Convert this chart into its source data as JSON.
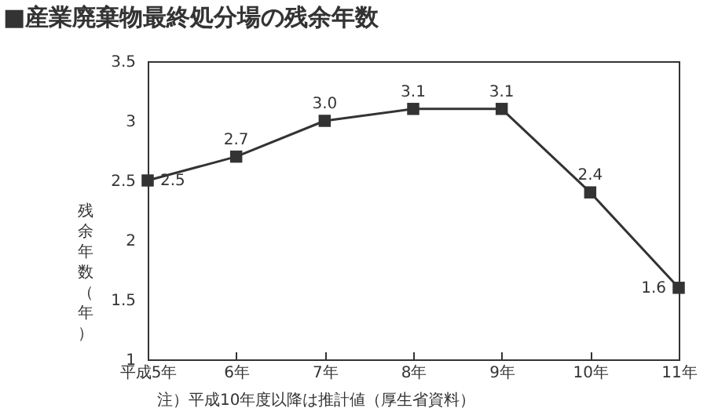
{
  "chart_data": {
    "type": "line",
    "title": "■産業廃棄物最終処分場の残余年数",
    "ylabel": "残余年数（年）",
    "categories": [
      "平成5年",
      "6年",
      "7年",
      "8年",
      "9年",
      "10年",
      "11年"
    ],
    "series": [
      {
        "color": "#333333",
        "values": [
          2.5,
          2.7,
          3.0,
          3.1,
          3.1,
          2.4,
          1.6
        ],
        "value_labels": [
          "2.5",
          "2.7",
          "3.0",
          "3.1",
          "3.1",
          "2.4",
          "1.6"
        ]
      }
    ],
    "ylim": [
      1,
      3.5
    ],
    "yticks": [
      1,
      1.5,
      2,
      2.5,
      3,
      3.5
    ],
    "grid": false,
    "marker": "square",
    "line_style": "solid",
    "legend": false,
    "annotations": [
      "注）平成10年度以降は推計値（厚生省資料）"
    ]
  }
}
